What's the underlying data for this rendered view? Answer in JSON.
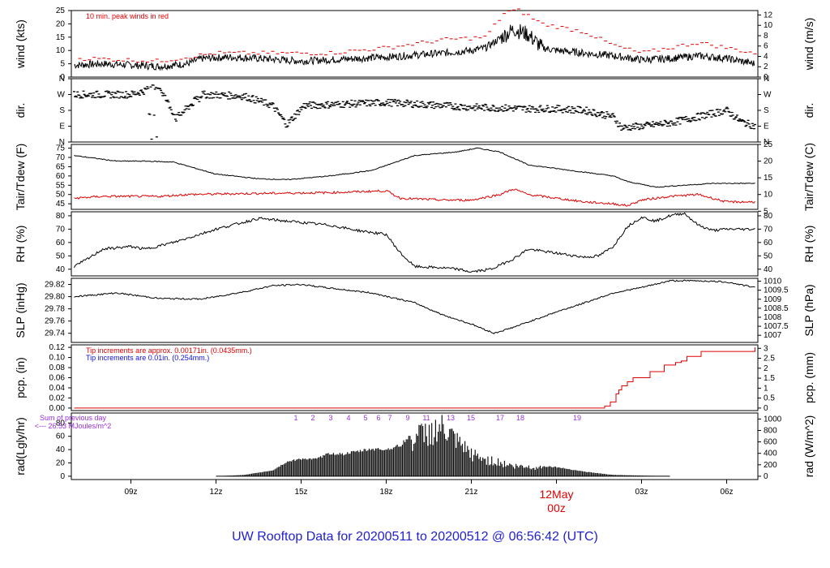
{
  "title": "UW Rooftop Data for 20200511  to  20200512 @ 06:56:42  (UTC)",
  "colors": {
    "title": "#1f1fd0",
    "peak": "#e00000",
    "line": "#000000",
    "dew": "#e00000",
    "pcp_red": "#e00000",
    "pcp_blue": "#1010e0",
    "purple": "#9a30d8",
    "hour_labels": "#9a30d8"
  },
  "time_axis": {
    "range_hours_from_00z": [
      -17.1,
      7.1
    ],
    "ticks": [
      {
        "h": -15,
        "label": "09z"
      },
      {
        "h": -12,
        "label": "12z"
      },
      {
        "h": -9,
        "label": "15z"
      },
      {
        "h": -6,
        "label": "18z"
      },
      {
        "h": -3,
        "label": "21z"
      },
      {
        "h": 3,
        "label": "03z"
      },
      {
        "h": 6,
        "label": "06z"
      }
    ],
    "day_marker": {
      "h": 0,
      "line1": "12May",
      "line2": "00z"
    }
  },
  "panels": {
    "wind": {
      "ylabel_left": "wind (kts)",
      "ylabel_right": "wind (m/s)",
      "ylim": [
        0,
        25
      ],
      "left_ticks": [
        "0",
        "5",
        "10",
        "15",
        "20",
        "25"
      ],
      "right_ticks": [
        "0",
        "2",
        "4",
        "6",
        "8",
        "10",
        "12"
      ],
      "annotation": "10 min. peak winds in red"
    },
    "dir": {
      "ylabel_left": "dir.",
      "ylabel_right": "dir.",
      "ticks": [
        "N",
        "E",
        "S",
        "W",
        "N"
      ]
    },
    "temp": {
      "ylabel_left": "Tair/Tdew (F)",
      "ylabel_right": "Tair/Tdew (C)",
      "ylim": [
        42,
        77
      ],
      "left_ticks": [
        "45",
        "50",
        "55",
        "60",
        "65",
        "70",
        "75"
      ],
      "right_ticks": [
        "5",
        "10",
        "15",
        "20",
        "25"
      ]
    },
    "rh": {
      "ylabel_left": "RH (%)",
      "ylabel_right": "RH (%)",
      "ylim": [
        35,
        83
      ],
      "ticks": [
        "40",
        "50",
        "60",
        "70",
        "80"
      ]
    },
    "slp": {
      "ylabel_left": "SLP (inHg)",
      "ylabel_right": "SLP (hPa)",
      "ylim": [
        29.725,
        29.83
      ],
      "left_ticks": [
        "29.74",
        "29.76",
        "29.78",
        "29.80",
        "29.82"
      ],
      "right_ticks": [
        "1007",
        "1007.5",
        "1008",
        "1008.5",
        "1009",
        "1009.5",
        "1010"
      ]
    },
    "pcp": {
      "ylabel_left": "pcp. (in)",
      "ylabel_right": "pcp. (mm)",
      "ylim": [
        -0.005,
        0.125
      ],
      "left_ticks": [
        "0.00",
        "0.02",
        "0.04",
        "0.06",
        "0.08",
        "0.10",
        "0.12"
      ],
      "right_ticks": [
        "0",
        "0.5",
        "1",
        "1.5",
        "2",
        "2.5",
        "3"
      ],
      "note_red": "Tip increments are approx. 0.00171in. (0.0435mm.)",
      "note_blue": "Tip increments are 0.01in. (0.254mm.)"
    },
    "rad": {
      "ylabel_left": "rad(Lgly/hr)",
      "ylabel_right": "rad (W/m^2)",
      "ylim": [
        -5,
        95
      ],
      "left_ticks": [
        "0",
        "20",
        "40",
        "60",
        "80"
      ],
      "right_ticks": [
        "0",
        "200",
        "400",
        "600",
        "800",
        "1000"
      ],
      "prev_day_line1": "Sum of previous day",
      "prev_day_line2": "<--- 26.53 MJoules/m^2",
      "hour_labels": [
        "1",
        "2",
        "3",
        "4",
        "5",
        "6",
        "7",
        "9",
        "11",
        "13",
        "15",
        "17",
        "18",
        "19"
      ]
    }
  },
  "chart_data": {
    "type": "line",
    "x_units": "hours relative to 2020-05-12 00z",
    "series": {
      "wind_kts": [
        [
          -17,
          4.5
        ],
        [
          -16,
          5
        ],
        [
          -15,
          4.5
        ],
        [
          -14,
          4
        ],
        [
          -13,
          5
        ],
        [
          -12.5,
          7
        ],
        [
          -11.5,
          7.5
        ],
        [
          -10.5,
          7
        ],
        [
          -9,
          6
        ],
        [
          -8,
          6.5
        ],
        [
          -6,
          7.5
        ],
        [
          -4,
          9
        ],
        [
          -3,
          10
        ],
        [
          -2.5,
          11
        ],
        [
          -1.5,
          18
        ],
        [
          -1,
          16
        ],
        [
          -0.5,
          11
        ],
        [
          0,
          10
        ],
        [
          1,
          9
        ],
        [
          2,
          8
        ],
        [
          3,
          6.5
        ],
        [
          4,
          7
        ],
        [
          5,
          8
        ],
        [
          6,
          7
        ],
        [
          7,
          5
        ]
      ],
      "wind_peak_kts": [
        [
          -16.5,
          7
        ],
        [
          -14,
          6
        ],
        [
          -12,
          9
        ],
        [
          -10,
          9
        ],
        [
          -8,
          9
        ],
        [
          -6,
          11
        ],
        [
          -4,
          14
        ],
        [
          -2.5,
          15
        ],
        [
          -1.8,
          24.5
        ],
        [
          -1.3,
          25
        ],
        [
          -0.5,
          20
        ],
        [
          0,
          19
        ],
        [
          1,
          17
        ],
        [
          2,
          12
        ],
        [
          3,
          9
        ],
        [
          4,
          11
        ],
        [
          5,
          13
        ],
        [
          6,
          11
        ],
        [
          7,
          9
        ]
      ],
      "dir_level_0N_1E_2S_3W_4N": [
        [
          -17,
          3
        ],
        [
          -15,
          3
        ],
        [
          -14,
          3.5
        ],
        [
          -13.4,
          1.5
        ],
        [
          -12.5,
          3
        ],
        [
          -11,
          2.9
        ],
        [
          -10,
          2.3
        ],
        [
          -9.5,
          1.1
        ],
        [
          -8.9,
          2.3
        ],
        [
          -6,
          2.5
        ],
        [
          -5,
          2.4
        ],
        [
          -3,
          2.2
        ],
        [
          -1,
          2.1
        ],
        [
          0,
          2.1
        ],
        [
          1,
          2
        ],
        [
          2,
          1.6
        ],
        [
          2.3,
          0.9
        ],
        [
          3,
          1
        ],
        [
          4,
          1.2
        ],
        [
          5,
          1.6
        ],
        [
          6,
          2
        ],
        [
          6.5,
          1.3
        ],
        [
          7,
          1
        ]
      ],
      "tair_f": [
        [
          -17,
          71
        ],
        [
          -16.5,
          70
        ],
        [
          -15.5,
          68
        ],
        [
          -14.5,
          68
        ],
        [
          -13.5,
          67.5
        ],
        [
          -12,
          61
        ],
        [
          -10.5,
          58.5
        ],
        [
          -9.5,
          58
        ],
        [
          -8,
          60
        ],
        [
          -6.5,
          63
        ],
        [
          -5,
          71
        ],
        [
          -3.5,
          73
        ],
        [
          -2.8,
          75
        ],
        [
          -2,
          73
        ],
        [
          -1,
          66
        ],
        [
          0,
          64
        ],
        [
          1,
          62
        ],
        [
          2,
          60
        ],
        [
          2.5,
          57
        ],
        [
          3.5,
          54
        ],
        [
          4.5,
          55
        ],
        [
          5.5,
          56
        ],
        [
          7,
          56
        ]
      ],
      "tdew_f": [
        [
          -17,
          48
        ],
        [
          -16,
          49
        ],
        [
          -14,
          49
        ],
        [
          -13,
          50
        ],
        [
          -11,
          50.5
        ],
        [
          -8,
          51
        ],
        [
          -6,
          52
        ],
        [
          -5.5,
          48
        ],
        [
          -4,
          47
        ],
        [
          -3,
          47
        ],
        [
          -2,
          50
        ],
        [
          -1.5,
          53
        ],
        [
          -1,
          50
        ],
        [
          0,
          48
        ],
        [
          1,
          46
        ],
        [
          2,
          45
        ],
        [
          2.5,
          44
        ],
        [
          3,
          47
        ],
        [
          4,
          49
        ],
        [
          5,
          50
        ],
        [
          5.5,
          48
        ],
        [
          6,
          46
        ],
        [
          7,
          46
        ]
      ],
      "rh_pct": [
        [
          -17,
          42
        ],
        [
          -16.5,
          48
        ],
        [
          -16,
          55
        ],
        [
          -15,
          57
        ],
        [
          -14.5,
          55
        ],
        [
          -13.5,
          60
        ],
        [
          -12,
          70
        ],
        [
          -10.5,
          78
        ],
        [
          -9.5,
          76
        ],
        [
          -8,
          73
        ],
        [
          -7,
          69
        ],
        [
          -6,
          66
        ],
        [
          -5.5,
          52
        ],
        [
          -5,
          42
        ],
        [
          -4,
          41
        ],
        [
          -3.5,
          40
        ],
        [
          -3,
          38
        ],
        [
          -2.3,
          40
        ],
        [
          -1.5,
          48
        ],
        [
          -1,
          55
        ],
        [
          0,
          52
        ],
        [
          1,
          49
        ],
        [
          1.5,
          50
        ],
        [
          2,
          57
        ],
        [
          2.5,
          72
        ],
        [
          3,
          79
        ],
        [
          3.5,
          76
        ],
        [
          4,
          80
        ],
        [
          4.5,
          82
        ],
        [
          5,
          73
        ],
        [
          5.5,
          69
        ],
        [
          6,
          70
        ],
        [
          7,
          70
        ]
      ],
      "slp_inhg": [
        [
          -17,
          29.8
        ],
        [
          -15.5,
          29.806
        ],
        [
          -14,
          29.797
        ],
        [
          -12.5,
          29.796
        ],
        [
          -11,
          29.808
        ],
        [
          -10,
          29.818
        ],
        [
          -9,
          29.82
        ],
        [
          -8,
          29.814
        ],
        [
          -6.5,
          29.806
        ],
        [
          -5,
          29.79
        ],
        [
          -4,
          29.77
        ],
        [
          -3,
          29.755
        ],
        [
          -2.2,
          29.74
        ],
        [
          -1.5,
          29.75
        ],
        [
          0,
          29.775
        ],
        [
          1,
          29.79
        ],
        [
          2,
          29.806
        ],
        [
          3,
          29.815
        ],
        [
          4,
          29.826
        ],
        [
          5,
          29.826
        ],
        [
          6,
          29.824
        ],
        [
          7,
          29.815
        ]
      ],
      "pcp_in_cumulative": [
        [
          -17,
          0
        ],
        [
          1.6,
          0
        ],
        [
          1.7,
          0.004
        ],
        [
          1.9,
          0.012
        ],
        [
          2.1,
          0.028
        ],
        [
          2.2,
          0.036
        ],
        [
          2.3,
          0.044
        ],
        [
          2.5,
          0.052
        ],
        [
          2.7,
          0.06
        ],
        [
          3.3,
          0.072
        ],
        [
          3.8,
          0.085
        ],
        [
          4.2,
          0.09
        ],
        [
          4.4,
          0.093
        ],
        [
          4.6,
          0.102
        ],
        [
          5.1,
          0.112
        ],
        [
          6.8,
          0.112
        ],
        [
          7,
          0.12
        ]
      ],
      "rad_lglyhr": [
        [
          -12,
          0
        ],
        [
          -11,
          2
        ],
        [
          -10,
          9
        ],
        [
          -9.5,
          22
        ],
        [
          -9,
          27
        ],
        [
          -8.5,
          26
        ],
        [
          -8,
          35
        ],
        [
          -7.5,
          34
        ],
        [
          -7,
          38
        ],
        [
          -6.5,
          42
        ],
        [
          -6,
          41
        ],
        [
          -5.5,
          47
        ],
        [
          -5,
          70
        ],
        [
          -4.5,
          80
        ],
        [
          -4,
          85
        ],
        [
          -3.5,
          60
        ],
        [
          -3,
          40
        ],
        [
          -2.5,
          30
        ],
        [
          -2,
          25
        ],
        [
          -1.5,
          18
        ],
        [
          -1,
          17
        ],
        [
          0,
          14
        ],
        [
          1,
          7
        ],
        [
          2,
          2
        ],
        [
          3,
          1
        ],
        [
          4,
          0
        ]
      ]
    }
  }
}
